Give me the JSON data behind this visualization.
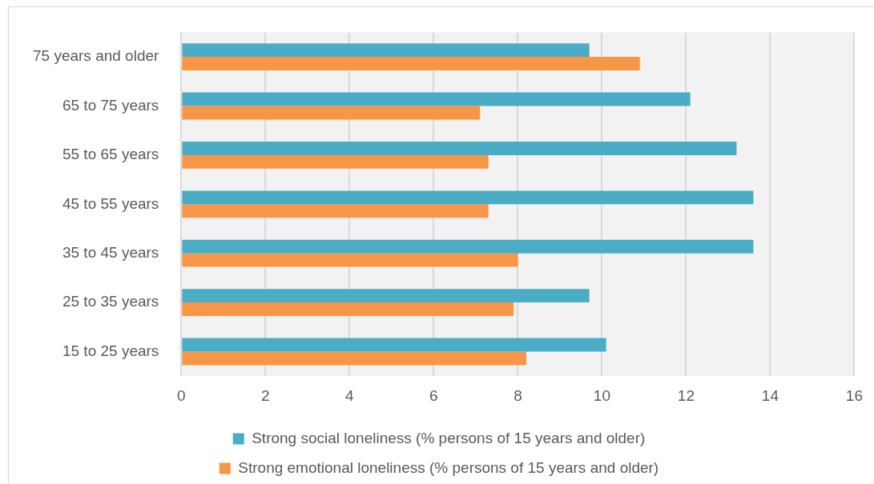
{
  "chart_data": {
    "type": "bar",
    "orientation": "horizontal",
    "categories": [
      "75 years and older",
      "65 to 75 years",
      "55 to 65 years",
      "45 to 55 years",
      "35 to 45 years",
      "25 to 35 years",
      "15 to 25 years"
    ],
    "series": [
      {
        "name": "Strong social loneliness (% persons of 15 years and older)",
        "color": "#4bacc6",
        "values": [
          9.7,
          12.1,
          13.2,
          13.6,
          13.6,
          9.7,
          10.1
        ]
      },
      {
        "name": "Strong emotional loneliness (% persons of 15 years and older)",
        "color": "#f79646",
        "values": [
          10.9,
          7.1,
          7.3,
          7.3,
          8.0,
          7.9,
          8.2
        ]
      }
    ],
    "xlim": [
      0,
      16
    ],
    "xticks": [
      0,
      2,
      4,
      6,
      8,
      10,
      12,
      14,
      16
    ],
    "grid": "x",
    "legend": "bottom"
  }
}
